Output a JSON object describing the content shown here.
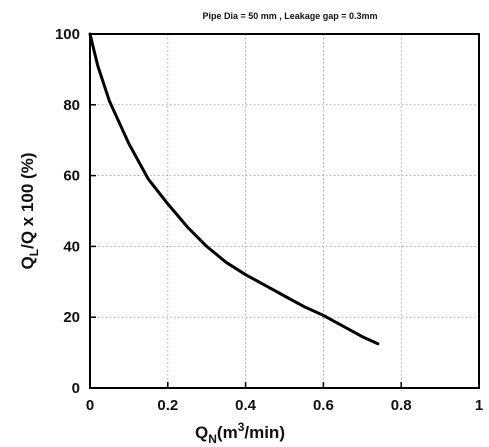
{
  "chart_data": {
    "type": "line",
    "title": "Pipe Dia = 50 mm , Leakage gap = 0.3mm",
    "xlabel": {
      "main": "Q",
      "sub": "N",
      "unit_pre": "(m",
      "sup": "3",
      "unit_post": "/min)"
    },
    "ylabel": {
      "main": "Q",
      "sub": "L",
      "rest": "/Q x 100 (%)"
    },
    "xlim": [
      0,
      1
    ],
    "ylim": [
      0,
      100
    ],
    "x_ticks": [
      0,
      0.2,
      0.4,
      0.6,
      0.8,
      1
    ],
    "x_tick_labels": [
      "0",
      "0.2",
      "0.4",
      "0.6",
      "0.8",
      "1"
    ],
    "y_ticks": [
      0,
      20,
      40,
      60,
      80,
      100
    ],
    "y_tick_labels": [
      "0",
      "20",
      "40",
      "60",
      "80",
      "100"
    ],
    "grid": true,
    "series": [
      {
        "x": [
          0.0,
          0.02,
          0.05,
          0.1,
          0.15,
          0.2,
          0.25,
          0.3,
          0.35,
          0.4,
          0.45,
          0.5,
          0.55,
          0.6,
          0.65,
          0.7,
          0.74
        ],
        "y": [
          100,
          91,
          81,
          69,
          59,
          52,
          45.5,
          40,
          35.5,
          32,
          29,
          26,
          23,
          20.5,
          17.5,
          14.5,
          12.5
        ]
      }
    ]
  }
}
